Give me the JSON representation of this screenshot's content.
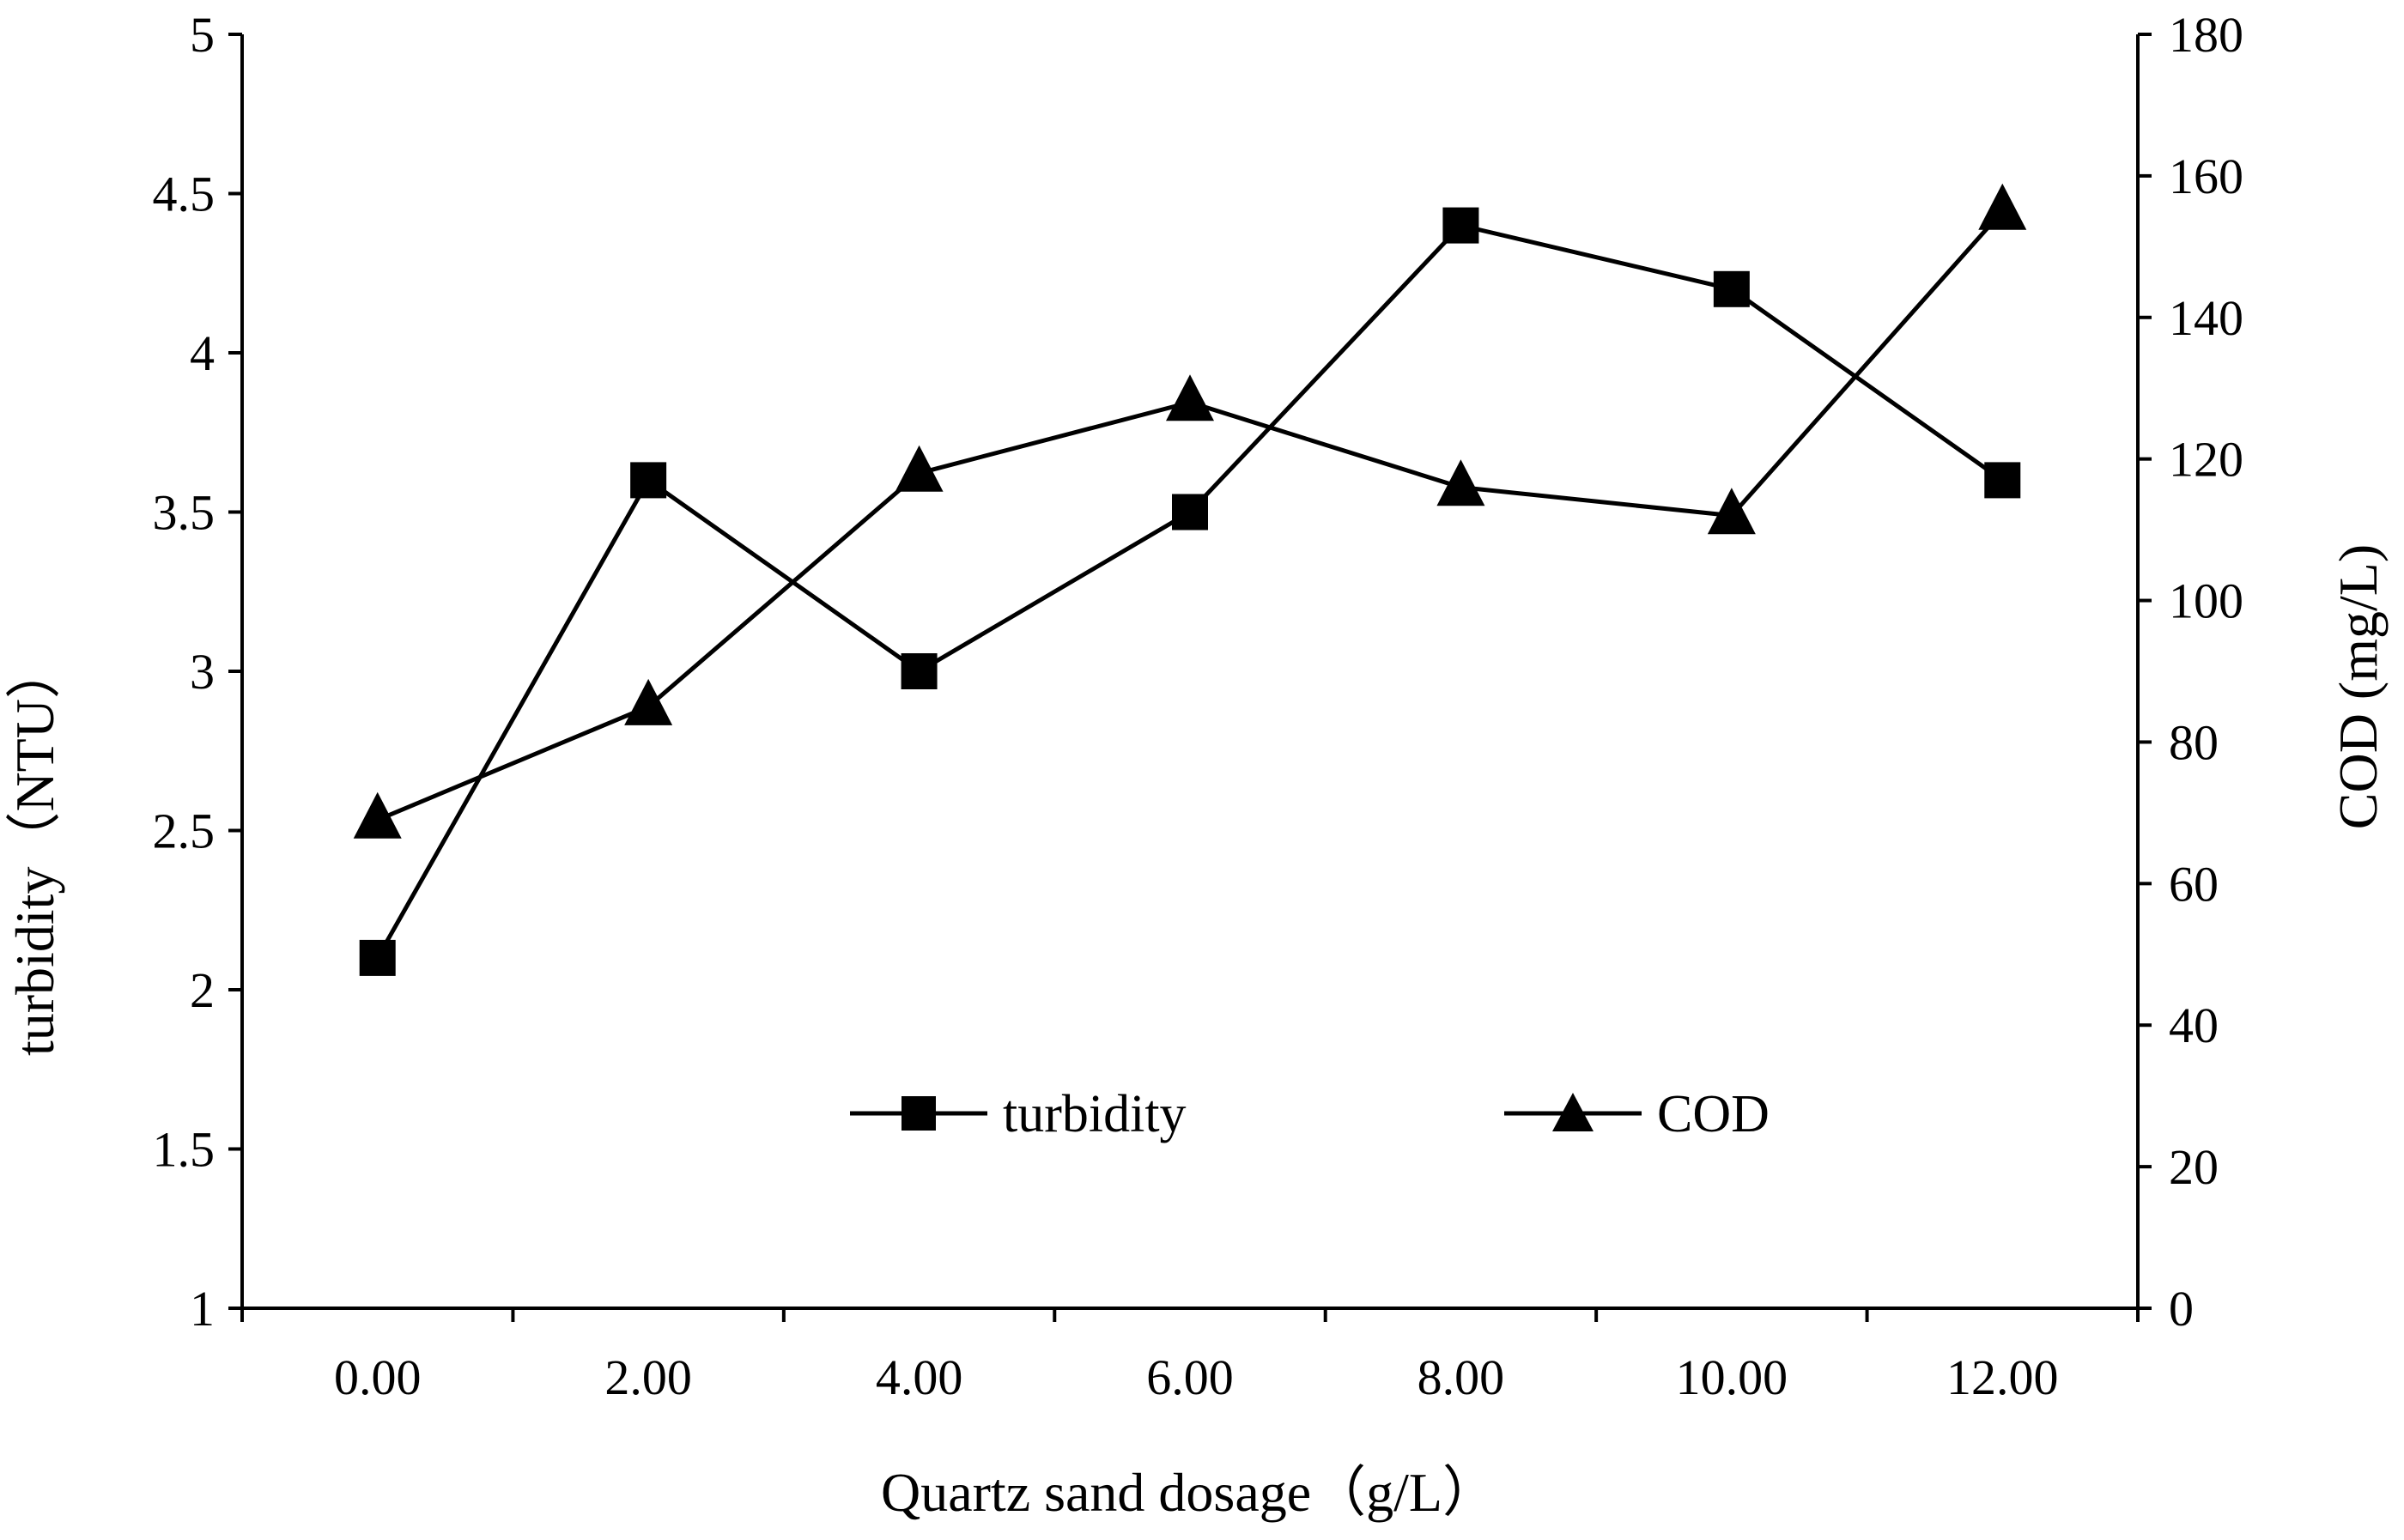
{
  "chart_data": {
    "type": "line",
    "title": "",
    "xlabel": "Quartz sand dosage（g/L）",
    "ylabel_left": "turbidity（NTU）",
    "ylabel_right": "COD (mg/L)",
    "categories": [
      "0.00",
      "2.00",
      "4.00",
      "6.00",
      "8.00",
      "10.00",
      "12.00"
    ],
    "x": [
      0,
      2,
      4,
      6,
      8,
      10,
      12
    ],
    "xlim": [
      -1,
      13
    ],
    "ylim_left": [
      1,
      5
    ],
    "ylim_right": [
      0,
      180
    ],
    "yticks_left": [
      "1",
      "1.5",
      "2",
      "2.5",
      "3",
      "3.5",
      "4",
      "4.5",
      "5"
    ],
    "yticks_right": [
      "0",
      "20",
      "40",
      "60",
      "80",
      "100",
      "120",
      "140",
      "160",
      "180"
    ],
    "grid": false,
    "legend_position": "center",
    "series": [
      {
        "name": "turbidity",
        "axis": "left",
        "marker": "square",
        "values": [
          2.1,
          3.6,
          3.0,
          3.5,
          4.4,
          4.2,
          3.6
        ]
      },
      {
        "name": "COD",
        "axis": "right",
        "marker": "triangle",
        "values": [
          69,
          85,
          118,
          128,
          116,
          112,
          155
        ]
      }
    ]
  }
}
